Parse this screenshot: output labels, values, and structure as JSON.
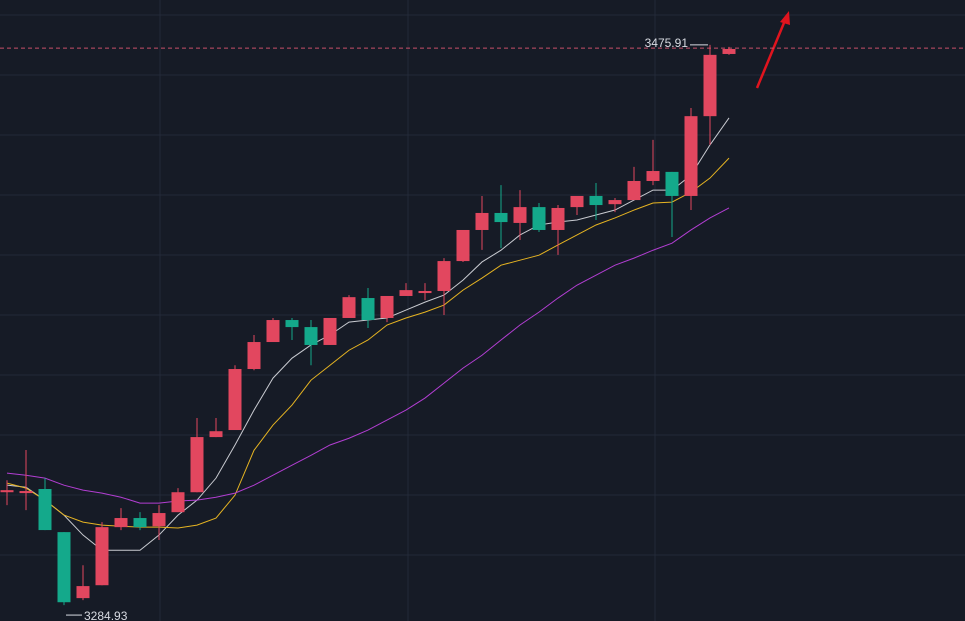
{
  "chart_data": {
    "type": "candlestick",
    "up_color": "#e2475f",
    "down_color": "#14a98b",
    "ylim": [
      3279.5,
      3491.2
    ],
    "price_line": 3474.8,
    "price_line_color": "#c8506a",
    "open": [
      3323.4,
      3323.1,
      3324.5,
      3309.8,
      3287.3,
      3291.7,
      3311.5,
      3314.6,
      3311.8,
      3316.6,
      3323.4,
      3342.2,
      3344.6,
      3365.4,
      3374.6,
      3382.1,
      3379.7,
      3373.6,
      3382.8,
      3389.6,
      3382.8,
      3390.3,
      3391.3,
      3392.0,
      3402.2,
      3412.8,
      3418.6,
      3415.2,
      3420.6,
      3412.8,
      3420.6,
      3424.4,
      3421.6,
      3423.0,
      3429.5,
      3432.6,
      3424.4,
      3451.6,
      3472.8
    ],
    "high": [
      3327.5,
      3337.8,
      3328.2,
      3309.8,
      3298.5,
      3313.2,
      3318.0,
      3316.6,
      3319.0,
      3324.8,
      3348.7,
      3348.7,
      3366.7,
      3377.0,
      3382.8,
      3382.8,
      3382.1,
      3382.8,
      3390.6,
      3393.0,
      3390.3,
      3394.7,
      3394.7,
      3403.2,
      3412.8,
      3424.4,
      3428.1,
      3426.4,
      3422.0,
      3421.3,
      3424.4,
      3428.8,
      3423.7,
      3434.3,
      3443.5,
      3432.6,
      3454.4,
      3475.91,
      3475.2
    ],
    "low": [
      3319.0,
      3317.3,
      3310.5,
      3284.93,
      3286.6,
      3291.7,
      3310.5,
      3310.5,
      3307.1,
      3316.6,
      3323.4,
      3342.2,
      3344.6,
      3365.0,
      3374.6,
      3375.3,
      3366.7,
      3373.6,
      3382.8,
      3379.4,
      3381.4,
      3390.3,
      3388.9,
      3383.8,
      3401.9,
      3406.0,
      3406.6,
      3409.4,
      3412.1,
      3404.3,
      3417.9,
      3416.2,
      3418.9,
      3423.0,
      3428.1,
      3410.4,
      3419.6,
      3441.8,
      3472.5
    ],
    "close": [
      3324.1,
      3323.8,
      3310.5,
      3285.9,
      3291.4,
      3311.5,
      3314.6,
      3311.5,
      3316.3,
      3323.4,
      3342.2,
      3344.2,
      3365.4,
      3374.6,
      3382.1,
      3379.7,
      3373.6,
      3382.8,
      3389.9,
      3382.1,
      3390.3,
      3392.3,
      3392.0,
      3402.2,
      3412.8,
      3418.6,
      3415.5,
      3420.6,
      3412.8,
      3420.3,
      3424.4,
      3421.3,
      3423.0,
      3429.5,
      3432.9,
      3424.4,
      3451.6,
      3472.5,
      3474.5
    ],
    "series": [
      {
        "color": "#c9cbd1",
        "values": [
          3325.8,
          3325.1,
          3320.7,
          3315.6,
          3308.8,
          3303.6,
          3303.6,
          3303.6,
          3308.8,
          3315.6,
          3320.7,
          3328.2,
          3339.5,
          3351.4,
          3362.3,
          3369.1,
          3373.6,
          3377.0,
          3381.4,
          3382.1,
          3382.8,
          3385.5,
          3388.2,
          3390.6,
          3395.7,
          3401.9,
          3405.9,
          3411.1,
          3414.5,
          3415.5,
          3416.2,
          3417.9,
          3419.6,
          3423.0,
          3426.4,
          3426.4,
          3431.5,
          3441.8,
          3451.0
        ]
      },
      {
        "color": "#e6b422",
        "values": [
          3326.5,
          3324.8,
          3320.7,
          3315.6,
          3313.2,
          3312.2,
          3311.8,
          3311.5,
          3311.5,
          3311.2,
          3312.2,
          3314.6,
          3322.4,
          3337.7,
          3346.3,
          3353.1,
          3361.6,
          3366.7,
          3371.8,
          3375.3,
          3380.4,
          3382.8,
          3384.8,
          3387.2,
          3392.3,
          3396.4,
          3400.8,
          3402.5,
          3404.2,
          3407.7,
          3411.1,
          3414.5,
          3416.9,
          3419.6,
          3422.0,
          3422.3,
          3425.7,
          3430.5,
          3437.3
        ]
      },
      {
        "color": "#b23ed2",
        "values": [
          3329.9,
          3329.2,
          3328.2,
          3325.8,
          3324.1,
          3323.1,
          3321.7,
          3319.7,
          3319.7,
          3320.4,
          3320.7,
          3321.7,
          3323.1,
          3325.8,
          3329.2,
          3332.6,
          3336.0,
          3339.5,
          3341.8,
          3344.6,
          3348.0,
          3351.4,
          3355.5,
          3360.6,
          3365.7,
          3370.1,
          3375.3,
          3380.4,
          3384.8,
          3389.6,
          3394.0,
          3397.4,
          3400.8,
          3403.2,
          3405.9,
          3408.3,
          3412.8,
          3416.9,
          3420.3
        ]
      }
    ]
  }
}
